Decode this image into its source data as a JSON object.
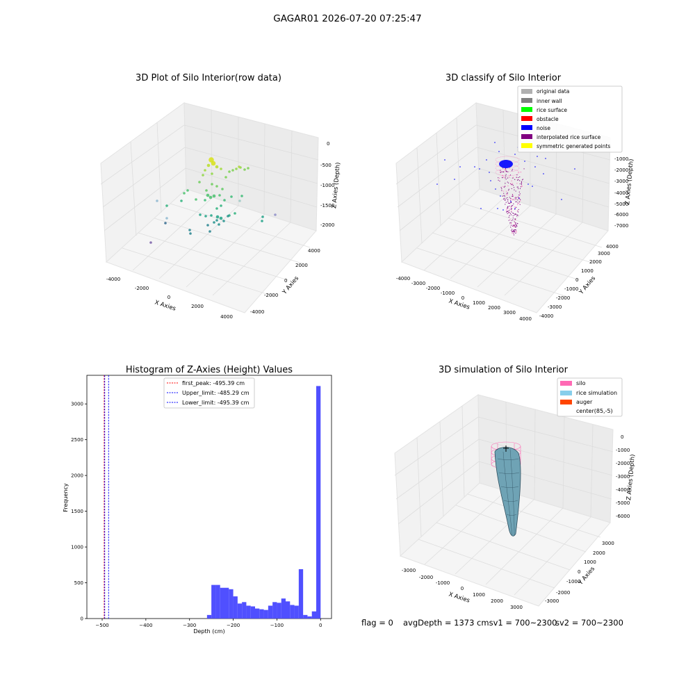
{
  "figure_title": "GAGAR01 2026-07-20 07:25:47",
  "status": {
    "flag": "flag = 0",
    "avg_depth": "avgDepth = 1373 cmsv1 = 700~2300",
    "sv2": "sv2 = 700~2300"
  },
  "colors": {
    "original": "#b0b0b0",
    "inner_wall": "#808080",
    "rice_surface": "#00ff00",
    "obstacle": "#ff0000",
    "noise": "#0000ff",
    "interp": "#800080",
    "symmetric": "#ffff00",
    "silo": "#ff69b4",
    "rice_sim": "#87ceeb",
    "auger": "#ff4500",
    "hist_bar": "#5050ff"
  },
  "chart_data": [
    {
      "type": "scatter",
      "title": "3D Plot of Silo Interior(row data)",
      "xlabel": "X Axies",
      "ylabel": "Y Axies",
      "zlabel": "Z Axies (Depth)",
      "x_ticks": [
        "-4000",
        "-2000",
        "0",
        "2000",
        "4000"
      ],
      "y_ticks": [
        "-4000",
        "-2000",
        "0",
        "2000",
        "4000"
      ],
      "z_ticks": [
        "0",
        "-500",
        "-1000",
        "-1500",
        "-2000"
      ],
      "points_note_colormap": "viridis by depth"
    },
    {
      "type": "scatter",
      "title": "3D classify of Silo Interior",
      "xlabel": "X Axies",
      "ylabel": "Y Axies",
      "zlabel": "Z Axies (Depth)",
      "x_ticks": [
        "-4000",
        "-3000",
        "-2000",
        "-1000",
        "0",
        "1000",
        "2000",
        "3000",
        "4000"
      ],
      "y_ticks": [
        "-4000",
        "-3000",
        "-2000",
        "-1000",
        "0",
        "1000",
        "2000",
        "3000",
        "4000"
      ],
      "z_ticks": [
        "0",
        "-1000",
        "-2000",
        "-3000",
        "-4000",
        "-5000",
        "-6000",
        "-7000"
      ],
      "legend": [
        "original data",
        "inner wall",
        "rice surface",
        "obstacle",
        "noise",
        "interpolated rice surface",
        "symmetric generated points"
      ]
    },
    {
      "type": "bar",
      "title": "Histogram of Z-Axies (Height) Values",
      "xlabel": "Depth (cm)",
      "ylabel": "Frequency",
      "xlim": [
        -535,
        25
      ],
      "ylim": [
        0,
        3400
      ],
      "x_ticks": [
        -500,
        -400,
        -300,
        -200,
        -100,
        0
      ],
      "y_ticks": [
        0,
        500,
        1000,
        1500,
        2000,
        2500,
        3000
      ],
      "bins": [
        {
          "x0": -260,
          "x1": -250,
          "value": 50
        },
        {
          "x0": -250,
          "x1": -240,
          "value": 470
        },
        {
          "x0": -240,
          "x1": -230,
          "value": 470
        },
        {
          "x0": -230,
          "x1": -220,
          "value": 430
        },
        {
          "x0": -220,
          "x1": -210,
          "value": 430
        },
        {
          "x0": -210,
          "x1": -200,
          "value": 410
        },
        {
          "x0": -200,
          "x1": -190,
          "value": 310
        },
        {
          "x0": -190,
          "x1": -180,
          "value": 210
        },
        {
          "x0": -180,
          "x1": -170,
          "value": 230
        },
        {
          "x0": -170,
          "x1": -160,
          "value": 180
        },
        {
          "x0": -160,
          "x1": -150,
          "value": 170
        },
        {
          "x0": -150,
          "x1": -140,
          "value": 140
        },
        {
          "x0": -140,
          "x1": -130,
          "value": 130
        },
        {
          "x0": -130,
          "x1": -120,
          "value": 120
        },
        {
          "x0": -120,
          "x1": -110,
          "value": 180
        },
        {
          "x0": -110,
          "x1": -100,
          "value": 230
        },
        {
          "x0": -100,
          "x1": -90,
          "value": 220
        },
        {
          "x0": -90,
          "x1": -80,
          "value": 280
        },
        {
          "x0": -80,
          "x1": -70,
          "value": 240
        },
        {
          "x0": -70,
          "x1": -60,
          "value": 190
        },
        {
          "x0": -60,
          "x1": -50,
          "value": 180
        },
        {
          "x0": -50,
          "x1": -40,
          "value": 690
        },
        {
          "x0": -40,
          "x1": -30,
          "value": 50
        },
        {
          "x0": -30,
          "x1": -20,
          "value": 30
        },
        {
          "x0": -20,
          "x1": -10,
          "value": 100
        },
        {
          "x0": -10,
          "x1": 0,
          "value": 3250
        }
      ],
      "vlines": [
        {
          "x": -495.39,
          "color": "#ff0000",
          "label": "first_peak: -495.39 cm"
        },
        {
          "x": -485.29,
          "color": "#0000ff",
          "label": "Upper_limit: -485.29 cm"
        },
        {
          "x": -495.39,
          "color": "#0000ff",
          "label": "Lower_limit: -495.39 cm"
        }
      ]
    },
    {
      "type": "area",
      "title": "3D simulation of Silo Interior",
      "xlabel": "X Axies",
      "ylabel": "Y Axies",
      "zlabel": "Z Axies (Depth)",
      "x_ticks": [
        "-3000",
        "-2000",
        "-1000",
        "0",
        "1000",
        "2000",
        "3000"
      ],
      "y_ticks": [
        "-3000",
        "-2000",
        "-1000",
        "0",
        "1000",
        "2000",
        "3000"
      ],
      "z_ticks": [
        "0",
        "-1000",
        "-2000",
        "-3000",
        "-4000",
        "-5000",
        "-6000"
      ],
      "legend": [
        "silo",
        "rice simulation",
        "auger",
        "center(85,-5)"
      ]
    }
  ]
}
